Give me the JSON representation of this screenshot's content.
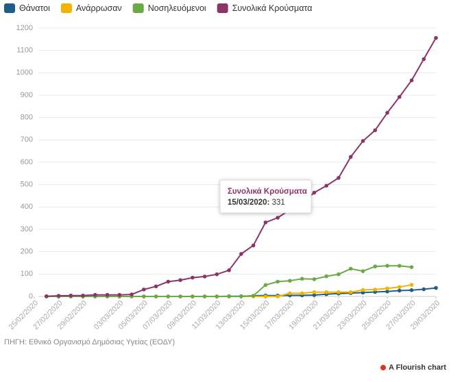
{
  "chart_data": {
    "type": "line",
    "x": [
      "26/02/2020",
      "27/02/2020",
      "28/02/2020",
      "29/02/2020",
      "01/03/2020",
      "02/03/2020",
      "03/03/2020",
      "04/03/2020",
      "05/03/2020",
      "06/03/2020",
      "07/03/2020",
      "08/03/2020",
      "09/03/2020",
      "10/03/2020",
      "11/03/2020",
      "12/03/2020",
      "13/03/2020",
      "14/03/2020",
      "15/03/2020",
      "16/03/2020",
      "17/03/2020",
      "18/03/2020",
      "19/03/2020",
      "20/03/2020",
      "21/03/2020",
      "22/03/2020",
      "23/03/2020",
      "24/03/2020",
      "25/03/2020",
      "26/03/2020",
      "27/03/2020",
      "28/03/2020",
      "29/03/2020"
    ],
    "series": [
      {
        "name": "Θάνατοι",
        "color": "#1d5f89",
        "values": [
          0,
          0,
          0,
          0,
          0,
          0,
          0,
          0,
          0,
          0,
          0,
          0,
          0,
          0,
          0,
          1,
          1,
          3,
          4,
          4,
          5,
          5,
          6,
          10,
          13,
          15,
          17,
          20,
          22,
          26,
          28,
          32,
          38
        ]
      },
      {
        "name": "Ανάρρωσαν",
        "color": "#f2b200",
        "values": [
          0,
          0,
          0,
          0,
          0,
          0,
          0,
          0,
          0,
          0,
          0,
          0,
          0,
          0,
          0,
          0,
          0,
          0,
          0,
          0,
          14,
          14,
          19,
          19,
          19,
          19,
          29,
          31,
          36,
          42,
          52,
          null,
          null
        ]
      },
      {
        "name": "Νοσηλευόμενοι",
        "color": "#6aaa45",
        "values": [
          0,
          0,
          0,
          0,
          0,
          0,
          0,
          0,
          0,
          0,
          0,
          0,
          0,
          0,
          0,
          0,
          0,
          3,
          51,
          66,
          70,
          79,
          77,
          90,
          99,
          124,
          113,
          134,
          137,
          137,
          131,
          null,
          null
        ]
      },
      {
        "name": "Συνολικά Κρούσματα",
        "color": "#8c3369",
        "values": [
          1,
          3,
          4,
          4,
          7,
          7,
          7,
          9,
          31,
          45,
          66,
          73,
          84,
          89,
          99,
          117,
          190,
          228,
          331,
          352,
          387,
          418,
          464,
          495,
          530,
          624,
          695,
          743,
          821,
          892,
          966,
          1061,
          1156
        ]
      }
    ],
    "xlim": [
      "25/02/2020",
      "29/03/2020"
    ],
    "xticks": [
      "25/02/2020",
      "27/02/2020",
      "29/02/2020",
      "03/03/2020",
      "05/03/2020",
      "07/03/2020",
      "09/03/2020",
      "11/03/2020",
      "13/03/2020",
      "15/03/2020",
      "17/03/2020",
      "19/03/2020",
      "21/03/2020",
      "23/03/2020",
      "25/03/2020",
      "27/03/2020",
      "29/03/2020"
    ],
    "ylim": [
      0,
      1200
    ],
    "yticks": [
      0,
      100,
      200,
      300,
      400,
      500,
      600,
      700,
      800,
      900,
      1000,
      1100,
      1200
    ],
    "grid": true,
    "source": "ΠΗΓΗ: Εθνικό Οργανισμό Δημόσιας Υγείας (ΕΟΔΥ)",
    "credit": "A Flourish chart"
  }
}
